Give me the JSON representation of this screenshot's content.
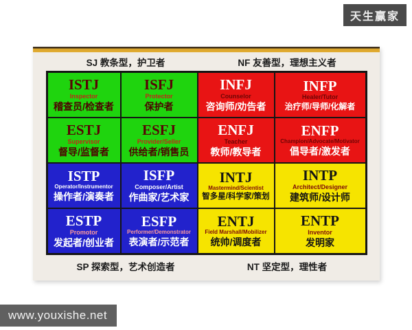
{
  "badge": {
    "label": "天生赢家"
  },
  "watermark": {
    "label": "www.youxishe.net"
  },
  "quadrants": {
    "sj_header": "SJ 教条型，护卫者",
    "nf_header": "NF 友善型，理想主义者",
    "sp_footer": "SP 探索型，艺术创造者",
    "nt_footer": "NT 坚定型，理性者"
  },
  "palette": {
    "sj_green": "#1fd40e",
    "nf_red": "#e81414",
    "sp_blue": "#2222cc",
    "nt_yellow": "#f6e400",
    "accent_gold": "#d8a32a",
    "panel_bg": "#f0ece6",
    "badge_bg": "#4a4a4a",
    "watermark_bg": "#606060"
  },
  "cells": [
    {
      "type": "ISTJ",
      "subtitle": "Inspector",
      "zh": "稽查员/检查者"
    },
    {
      "type": "ISFJ",
      "subtitle": "Protector",
      "zh": "保护者"
    },
    {
      "type": "INFJ",
      "subtitle": "Counselor",
      "zh": "咨询师/劝告者"
    },
    {
      "type": "INFP",
      "subtitle": "Healer/Tutor",
      "zh": "治疗师/导师/化解者"
    },
    {
      "type": "ESTJ",
      "subtitle": "Supervisor",
      "zh": "督导/监督者"
    },
    {
      "type": "ESFJ",
      "subtitle": "Provider/Seller",
      "zh": "供给者/销售员"
    },
    {
      "type": "ENFJ",
      "subtitle": "Teacher",
      "zh": "教师/教导者"
    },
    {
      "type": "ENFP",
      "subtitle": "Champion/Advocate/Motivator",
      "zh": "倡导者/激发者"
    },
    {
      "type": "ISTP",
      "subtitle": "Operator/Instrumentor",
      "zh": "操作者/演奏者"
    },
    {
      "type": "ISFP",
      "subtitle": "Composer/Artist",
      "zh": "作曲家/艺术家"
    },
    {
      "type": "INTJ",
      "subtitle": "Mastermind/Scientist",
      "zh": "智多星/科学家/策划"
    },
    {
      "type": "INTP",
      "subtitle": "Architect/Designer",
      "zh": "建筑师/设计师"
    },
    {
      "type": "ESTP",
      "subtitle": "Promotor",
      "zh": "发起者/创业者"
    },
    {
      "type": "ESFP",
      "subtitle": "Performer/Demonstrator",
      "zh": "表演者/示范者"
    },
    {
      "type": "ENTJ",
      "subtitle": "Field Marshall/Mobilizer",
      "zh": "统帅/调度者"
    },
    {
      "type": "ENTP",
      "subtitle": "Inventor",
      "zh": "发明家"
    }
  ]
}
